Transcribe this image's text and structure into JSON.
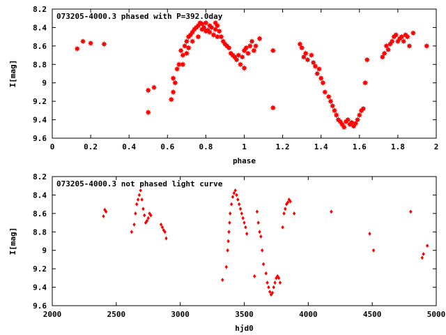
{
  "chart_data": [
    {
      "type": "scatter",
      "title": "073205-4000.3 phased with P=392.0day",
      "xlabel": "phase",
      "ylabel": "I[mag]",
      "xlim": [
        0,
        2
      ],
      "ylim": [
        8.2,
        9.6
      ],
      "y_inverted": true,
      "xticks": [
        "0",
        "0.2",
        "0.4",
        "0.6",
        "0.8",
        "1",
        "1.2",
        "1.4",
        "1.6",
        "1.8",
        "2"
      ],
      "yticks": [
        "8.2",
        "8.4",
        "8.6",
        "8.8",
        "9",
        "9.2",
        "9.4",
        "9.6"
      ],
      "grid": false,
      "legend": "none",
      "color": "#ff0000",
      "series": [
        {
          "x": [
            0.13,
            0.16,
            0.2,
            0.27,
            0.5,
            0.5,
            0.53,
            0.62,
            0.63,
            0.63,
            0.64,
            0.65,
            0.66,
            0.67,
            0.68,
            0.68,
            0.69,
            0.7,
            0.7,
            0.71,
            0.71,
            0.72,
            0.73,
            0.73,
            0.74,
            0.75,
            0.76,
            0.76,
            0.77,
            0.78,
            0.78,
            0.79,
            0.8,
            0.8,
            0.81,
            0.82,
            0.82,
            0.83,
            0.84,
            0.85,
            0.85,
            0.86,
            0.86,
            0.87,
            0.88,
            0.89,
            0.9,
            0.91,
            0.92,
            0.93,
            0.94,
            0.95,
            0.96,
            0.97,
            0.98,
            0.99,
            1.0,
            1.0,
            1.01,
            1.02,
            1.03,
            1.04,
            1.05,
            1.06,
            1.08,
            1.15,
            1.15,
            1.29,
            1.3,
            1.31,
            1.32,
            1.33,
            1.35,
            1.36,
            1.37,
            1.38,
            1.39,
            1.4,
            1.41,
            1.42,
            1.44,
            1.45,
            1.46,
            1.47,
            1.48,
            1.49,
            1.5,
            1.51,
            1.52,
            1.53,
            1.54,
            1.55,
            1.56,
            1.57,
            1.58,
            1.59,
            1.6,
            1.61,
            1.62,
            1.63,
            1.64,
            1.72,
            1.73,
            1.74,
            1.75,
            1.76,
            1.77,
            1.78,
            1.79,
            1.8,
            1.81,
            1.82,
            1.83,
            1.84,
            1.85,
            1.86,
            1.88,
            1.95
          ],
          "y": [
            8.63,
            8.55,
            8.57,
            8.58,
            9.08,
            9.32,
            9.05,
            9.18,
            8.95,
            9.1,
            9.0,
            8.85,
            8.8,
            8.65,
            8.7,
            8.8,
            8.6,
            8.55,
            8.68,
            8.5,
            8.62,
            8.48,
            8.55,
            8.45,
            8.42,
            8.4,
            8.38,
            8.5,
            8.35,
            8.42,
            8.36,
            8.4,
            8.44,
            8.35,
            8.43,
            8.38,
            8.45,
            8.4,
            8.48,
            8.42,
            8.35,
            8.5,
            8.38,
            8.44,
            8.5,
            8.55,
            8.58,
            8.6,
            8.62,
            8.68,
            8.7,
            8.72,
            8.75,
            8.7,
            8.8,
            8.72,
            8.65,
            8.84,
            8.62,
            8.68,
            8.6,
            8.55,
            8.65,
            8.6,
            8.52,
            9.27,
            8.65,
            8.58,
            8.62,
            8.72,
            8.68,
            8.75,
            8.7,
            8.78,
            8.82,
            8.9,
            8.85,
            8.95,
            9.0,
            9.1,
            9.15,
            9.2,
            9.25,
            9.3,
            9.35,
            9.4,
            9.42,
            9.45,
            9.48,
            9.42,
            9.4,
            9.45,
            9.43,
            9.47,
            9.44,
            9.4,
            9.35,
            9.3,
            9.28,
            9.0,
            8.75,
            8.72,
            8.68,
            8.6,
            8.64,
            8.58,
            8.55,
            8.5,
            8.48,
            8.55,
            8.52,
            8.5,
            8.55,
            8.48,
            8.5,
            8.6,
            8.46,
            8.6
          ]
        }
      ]
    },
    {
      "type": "scatter",
      "title": "073205-4000.3 not phased light curve",
      "xlabel": "hjd0",
      "ylabel": "I[mag]",
      "xlim": [
        2000,
        5000
      ],
      "ylim": [
        8.2,
        9.6
      ],
      "y_inverted": true,
      "xticks": [
        "2000",
        "2500",
        "3000",
        "3500",
        "4000",
        "4500",
        "5000"
      ],
      "yticks": [
        "8.2",
        "8.4",
        "8.6",
        "8.8",
        "9",
        "9.2",
        "9.4",
        "9.6"
      ],
      "grid": false,
      "legend": "none",
      "color": "#ff0000",
      "series": [
        {
          "x": [
            2400,
            2410,
            2420,
            2620,
            2640,
            2650,
            2660,
            2670,
            2680,
            2690,
            2700,
            2710,
            2720,
            2730,
            2740,
            2750,
            2760,
            2770,
            2850,
            2860,
            2870,
            2880,
            2890,
            3330,
            3360,
            3370,
            3375,
            3380,
            3385,
            3390,
            3400,
            3410,
            3420,
            3430,
            3440,
            3450,
            3460,
            3470,
            3480,
            3490,
            3500,
            3510,
            3520,
            3580,
            3600,
            3610,
            3620,
            3630,
            3640,
            3650,
            3670,
            3680,
            3690,
            3700,
            3710,
            3720,
            3730,
            3740,
            3750,
            3760,
            3770,
            3780,
            3800,
            3810,
            3820,
            3830,
            3840,
            3850,
            3860,
            3890,
            4180,
            4480,
            4510,
            4800,
            4890,
            4900,
            4930
          ],
          "y": [
            8.63,
            8.56,
            8.58,
            8.8,
            8.72,
            8.6,
            8.5,
            8.45,
            8.4,
            8.35,
            8.45,
            8.55,
            8.62,
            8.7,
            8.68,
            8.65,
            8.6,
            8.62,
            8.72,
            8.75,
            8.78,
            8.8,
            8.87,
            9.32,
            9.18,
            9.0,
            8.9,
            8.8,
            8.7,
            8.6,
            8.5,
            8.42,
            8.38,
            8.35,
            8.4,
            8.45,
            8.5,
            8.55,
            8.6,
            8.65,
            8.7,
            8.75,
            8.82,
            9.28,
            8.58,
            8.7,
            8.8,
            8.85,
            9.0,
            9.15,
            9.25,
            9.35,
            9.4,
            9.45,
            9.48,
            9.46,
            9.4,
            9.35,
            9.3,
            9.28,
            9.3,
            9.35,
            8.75,
            8.6,
            8.55,
            8.5,
            8.48,
            8.45,
            8.47,
            8.6,
            8.58,
            8.82,
            9.0,
            8.58,
            9.08,
            9.04,
            8.95
          ]
        }
      ]
    }
  ]
}
